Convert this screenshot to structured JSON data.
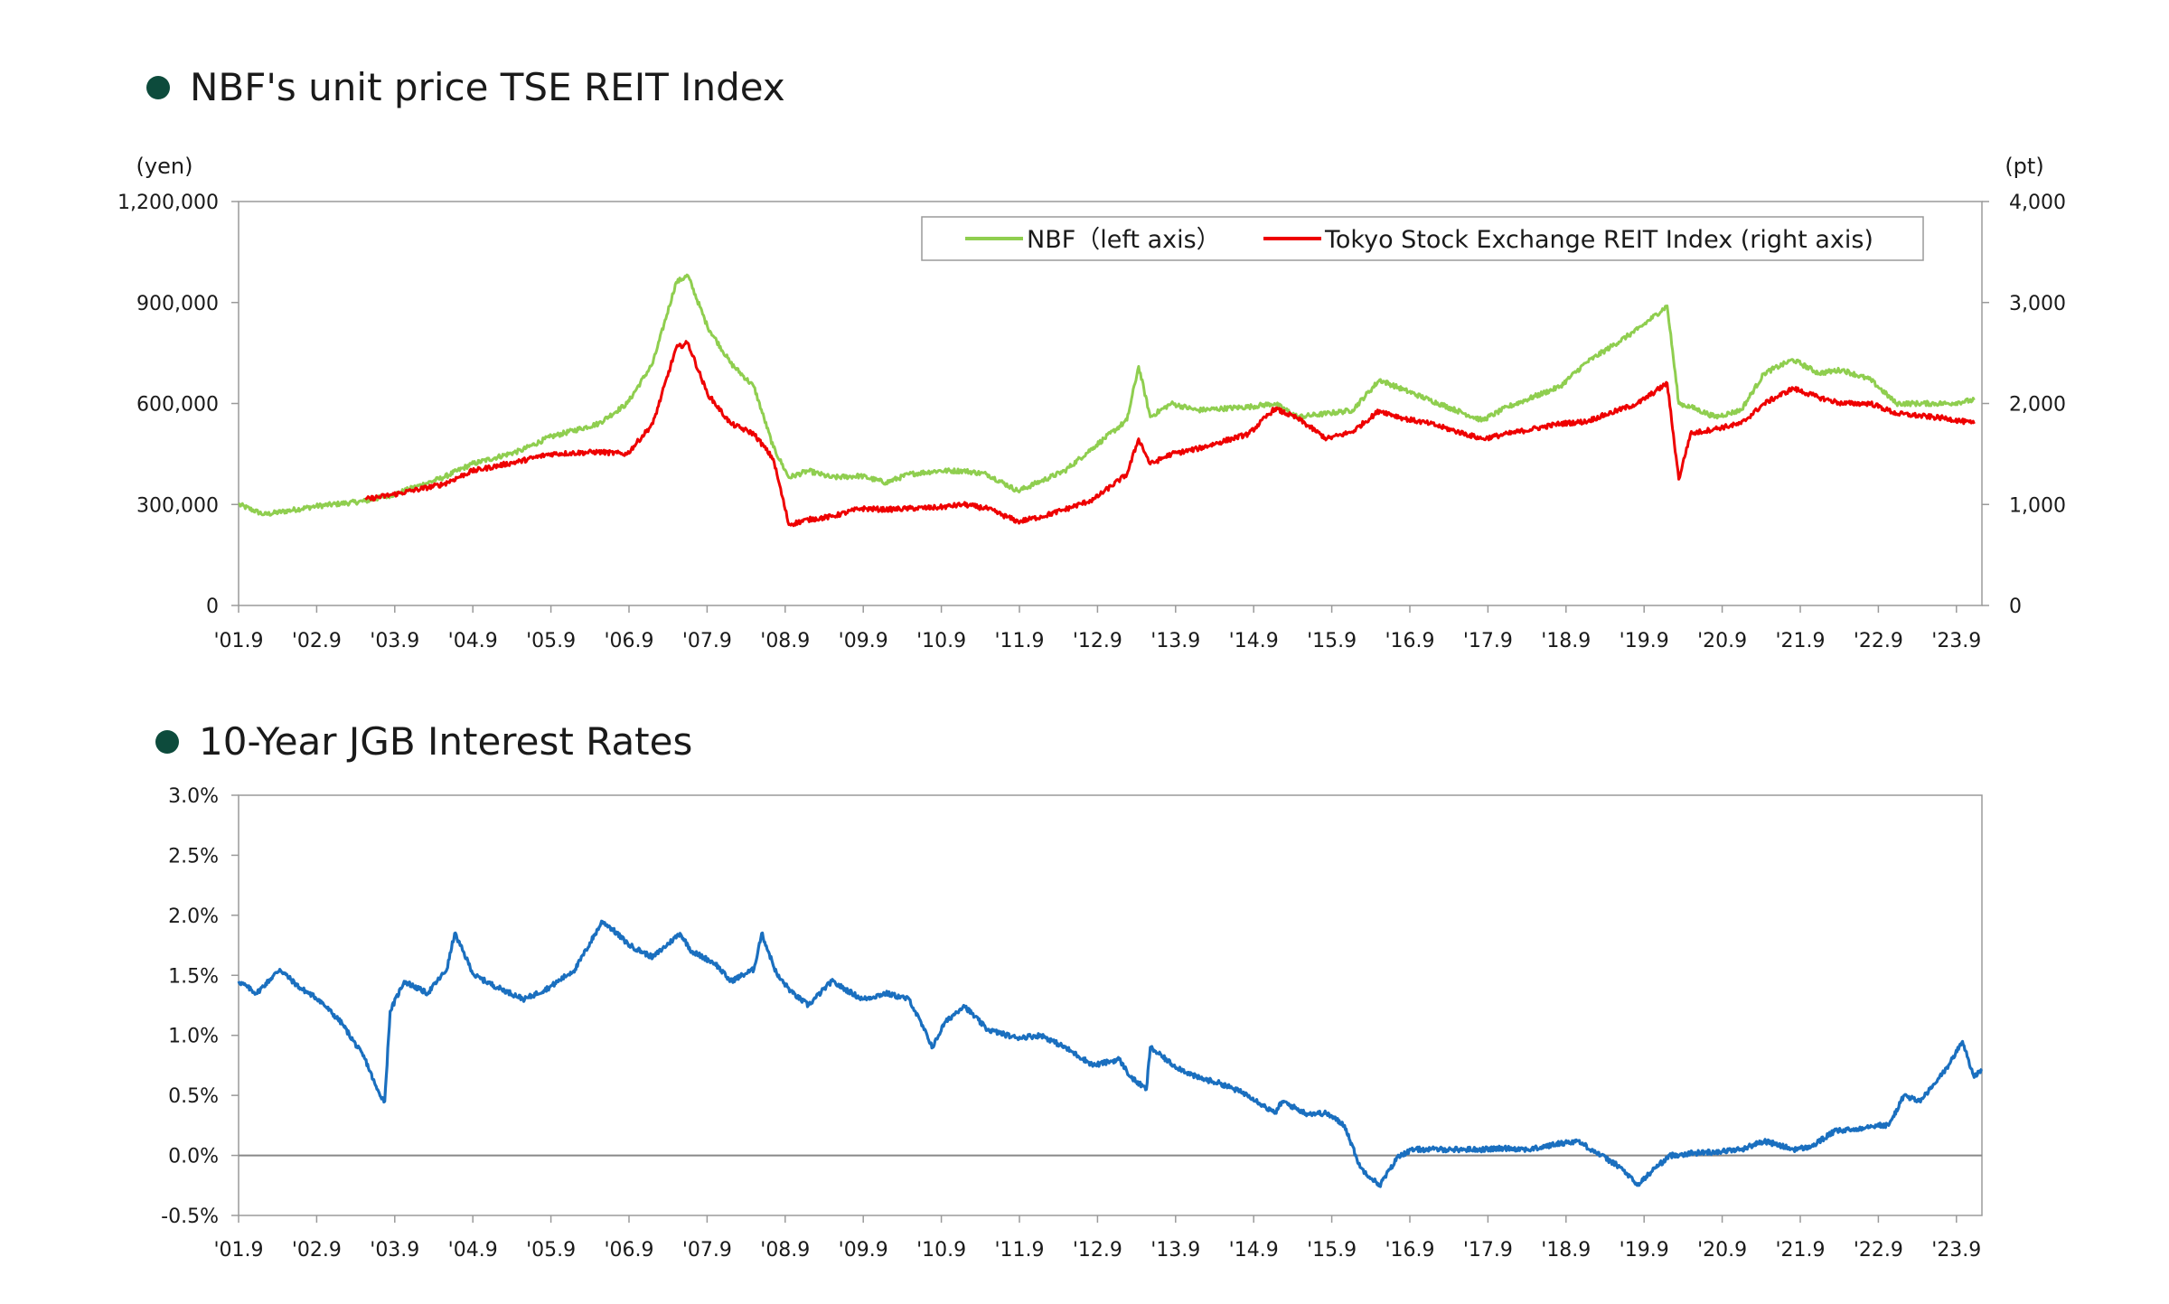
{
  "titles": {
    "chart1": "NBF's unit price TSE REIT Index",
    "chart2": "10-Year JGB Interest Rates"
  },
  "colors": {
    "nbf": "#8fce4f",
    "reit": "#ee0000",
    "jgb": "#1a6fbf",
    "bullet": "#0d4b3c",
    "axis": "#9a9a9a"
  },
  "x_ticks": [
    "'01.9",
    "'02.9",
    "'03.9",
    "'04.9",
    "'05.9",
    "'06.9",
    "'07.9",
    "'08.9",
    "'09.9",
    "'10.9",
    "'11.9",
    "'12.9",
    "'13.9",
    "'14.9",
    "'15.9",
    "'16.9",
    "'17.9",
    "'18.9",
    "'19.9",
    "'20.9",
    "'21.9",
    "'22.9",
    "'23.9"
  ],
  "chart_data": [
    {
      "type": "line",
      "title": "NBF's unit price TSE REIT Index",
      "ylabel_left": "(yen)",
      "ylabel_right": "(pt)",
      "y_left_ticks": [
        "1,200,000",
        "900,000",
        "600,000",
        "300,000",
        "0"
      ],
      "y_right_ticks": [
        "4,000",
        "3,000",
        "2,000",
        "1,000",
        "0"
      ],
      "ylim_left": [
        0,
        1200000
      ],
      "ylim_right": [
        0,
        4000
      ],
      "legend": "top-right",
      "x": [
        2001.67,
        2002.0,
        2002.67,
        2003.3,
        2003.67,
        2004.3,
        2004.67,
        2005.3,
        2005.67,
        2006.3,
        2006.67,
        2007.0,
        2007.3,
        2007.45,
        2007.7,
        2008.0,
        2008.3,
        2008.55,
        2008.75,
        2009.0,
        2009.3,
        2009.67,
        2010.0,
        2010.3,
        2010.67,
        2011.0,
        2011.3,
        2011.7,
        2012.0,
        2012.3,
        2012.67,
        2013.1,
        2013.25,
        2013.4,
        2013.67,
        2014.0,
        2014.67,
        2015.0,
        2015.3,
        2015.67,
        2016.0,
        2016.35,
        2016.67,
        2017.0,
        2017.67,
        2018.0,
        2018.67,
        2019.0,
        2019.67,
        2020.05,
        2020.2,
        2020.35,
        2020.67,
        2021.0,
        2021.3,
        2021.67,
        2022.0,
        2022.3,
        2022.67,
        2023.0,
        2023.67,
        2024.0
      ],
      "series": [
        {
          "name": "NBF（left axis）",
          "axis": "left",
          "values": [
            300000,
            270000,
            295000,
            310000,
            330000,
            380000,
            420000,
            460000,
            500000,
            540000,
            600000,
            720000,
            960000,
            980000,
            830000,
            720000,
            650000,
            470000,
            380000,
            400000,
            380000,
            385000,
            365000,
            390000,
            400000,
            400000,
            390000,
            340000,
            370000,
            400000,
            470000,
            550000,
            710000,
            560000,
            600000,
            580000,
            590000,
            600000,
            560000,
            570000,
            580000,
            670000,
            640000,
            610000,
            550000,
            590000,
            650000,
            720000,
            820000,
            890000,
            600000,
            590000,
            560000,
            580000,
            690000,
            730000,
            690000,
            700000,
            670000,
            600000,
            600000,
            610000
          ]
        },
        {
          "name": "Tokyo Stock Exchange REIT Index (right axis)",
          "axis": "right",
          "values": [
            null,
            null,
            null,
            1050,
            1100,
            1200,
            1330,
            1430,
            1500,
            1520,
            1500,
            1800,
            2550,
            2600,
            2100,
            1800,
            1700,
            1450,
            800,
            850,
            880,
            960,
            950,
            960,
            970,
            1000,
            960,
            830,
            880,
            950,
            1050,
            1300,
            1650,
            1400,
            1500,
            1550,
            1700,
            1950,
            1850,
            1650,
            1720,
            1930,
            1850,
            1800,
            1650,
            1700,
            1800,
            1820,
            2000,
            2200,
            1250,
            1700,
            1750,
            1800,
            2000,
            2150,
            2060,
            2000,
            2000,
            1900,
            1850,
            1800
          ]
        }
      ]
    },
    {
      "type": "line",
      "title": "10-Year JGB Interest Rates",
      "y_ticks": [
        "3.0%",
        "2.5%",
        "2.0%",
        "1.5%",
        "1.0%",
        "0.5%",
        "0.0%",
        "-0.5%"
      ],
      "ylim": [
        -0.5,
        3.0
      ],
      "x": [
        2001.67,
        2001.9,
        2002.2,
        2002.45,
        2002.7,
        2003.0,
        2003.3,
        2003.45,
        2003.55,
        2003.62,
        2003.8,
        2004.1,
        2004.35,
        2004.45,
        2004.7,
        2005.0,
        2005.35,
        2005.67,
        2006.0,
        2006.35,
        2006.45,
        2006.7,
        2007.0,
        2007.35,
        2007.5,
        2007.8,
        2008.0,
        2008.3,
        2008.4,
        2008.6,
        2008.8,
        2009.0,
        2009.3,
        2009.7,
        2010.0,
        2010.3,
        2010.6,
        2010.75,
        2011.0,
        2011.3,
        2011.67,
        2012.0,
        2012.3,
        2012.67,
        2013.0,
        2013.15,
        2013.35,
        2013.4,
        2013.7,
        2014.0,
        2014.3,
        2014.67,
        2015.0,
        2015.1,
        2015.4,
        2015.67,
        2015.9,
        2016.1,
        2016.35,
        2016.6,
        2016.8,
        2017.0,
        2017.3,
        2017.67,
        2018.0,
        2018.3,
        2018.67,
        2018.9,
        2019.2,
        2019.45,
        2019.67,
        2019.9,
        2020.1,
        2020.4,
        2020.67,
        2021.0,
        2021.3,
        2021.67,
        2021.9,
        2022.2,
        2022.5,
        2022.67,
        2022.9,
        2023.1,
        2023.3,
        2023.5,
        2023.67,
        2023.85,
        2024.0,
        2024.1
      ],
      "series": [
        {
          "name": "",
          "values": [
            1.45,
            1.35,
            1.55,
            1.4,
            1.3,
            1.1,
            0.8,
            0.55,
            0.45,
            1.2,
            1.45,
            1.35,
            1.55,
            1.85,
            1.5,
            1.4,
            1.3,
            1.4,
            1.55,
            1.95,
            1.9,
            1.75,
            1.65,
            1.85,
            1.7,
            1.6,
            1.45,
            1.55,
            1.85,
            1.5,
            1.35,
            1.25,
            1.45,
            1.3,
            1.35,
            1.3,
            0.9,
            1.1,
            1.25,
            1.05,
            0.98,
            1.0,
            0.9,
            0.75,
            0.8,
            0.65,
            0.55,
            0.9,
            0.75,
            0.65,
            0.6,
            0.5,
            0.35,
            0.45,
            0.35,
            0.35,
            0.25,
            -0.1,
            -0.25,
            0.0,
            0.05,
            0.05,
            0.05,
            0.05,
            0.06,
            0.05,
            0.1,
            0.12,
            0.0,
            -0.1,
            -0.25,
            -0.1,
            0.0,
            0.02,
            0.03,
            0.05,
            0.12,
            0.05,
            0.07,
            0.2,
            0.22,
            0.25,
            0.25,
            0.5,
            0.45,
            0.6,
            0.75,
            0.95,
            0.65,
            0.72
          ]
        }
      ]
    }
  ]
}
